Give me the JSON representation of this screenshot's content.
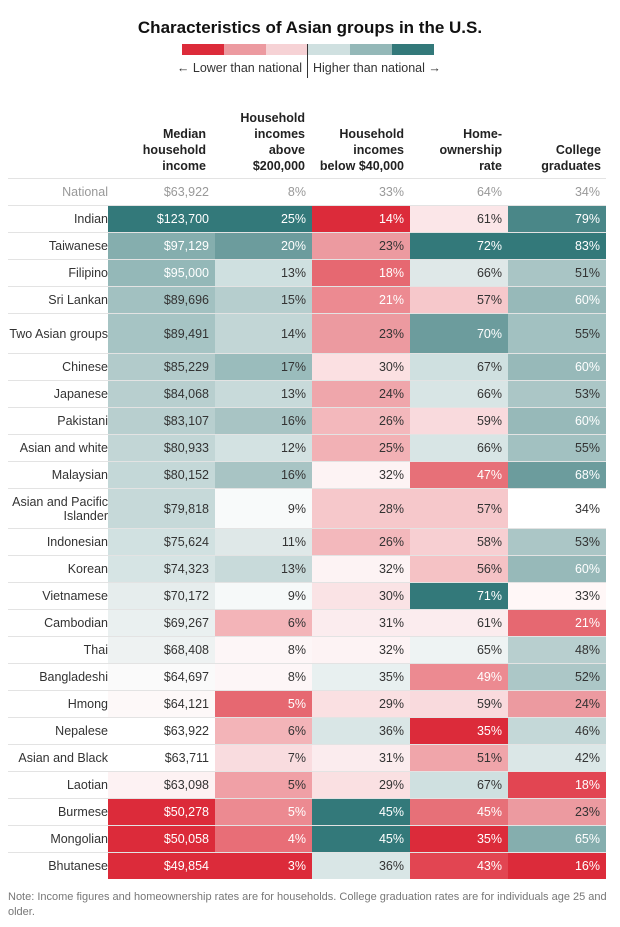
{
  "title": "Characteristics of Asian groups in the U.S.",
  "legend": {
    "lower_label": "← Lower than national",
    "higher_label": "Higher than national →",
    "colors": [
      "#dc2b3a",
      "#ec9aa0",
      "#f6d2d5",
      "#cfe0e0",
      "#94b8b8",
      "#33797a"
    ]
  },
  "columns": [
    {
      "label": "Median household income"
    },
    {
      "label": "Household incomes above $200,000"
    },
    {
      "label": "Household incomes below $40,000"
    },
    {
      "label": "Home-ownership rate"
    },
    {
      "label": "College graduates"
    }
  ],
  "note": "Note: Income figures and homeownership rates are for households. College graduation rates are for individuals age 25 and older.",
  "chart_data": {
    "type": "table",
    "title": "Characteristics of Asian groups in the U.S.",
    "columns": [
      "Median household income",
      "Household incomes above $200,000",
      "Household incomes below $40,000",
      "Home-ownership rate",
      "College graduates"
    ],
    "rows": [
      {
        "group": "National",
        "values": [
          "$63,922",
          "8%",
          "33%",
          "64%",
          "34%"
        ],
        "colors": [
          "#ffffff",
          "#ffffff",
          "#ffffff",
          "#ffffff",
          "#ffffff"
        ]
      },
      {
        "group": "Indian",
        "values": [
          "$123,700",
          "25%",
          "14%",
          "61%",
          "79%"
        ],
        "colors": [
          "#33797a",
          "#33797a",
          "#dc2b3a",
          "#fbe6e8",
          "#4a8788"
        ]
      },
      {
        "group": "Taiwanese",
        "values": [
          "$97,129",
          "20%",
          "23%",
          "72%",
          "83%"
        ],
        "colors": [
          "#85aeae",
          "#6c9c9d",
          "#ec9aa0",
          "#33797a",
          "#33797a"
        ]
      },
      {
        "group": "Filipino",
        "values": [
          "$95,000",
          "13%",
          "18%",
          "66%",
          "51%"
        ],
        "colors": [
          "#94b8b8",
          "#cfe0e0",
          "#e66871",
          "#dfe8e8",
          "#a9c5c5"
        ]
      },
      {
        "group": "Sri Lankan",
        "values": [
          "$89,696",
          "15%",
          "21%",
          "57%",
          "60%"
        ],
        "colors": [
          "#a2c1c1",
          "#b6cece",
          "#ec8a91",
          "#f6c8cb",
          "#97b9b9"
        ]
      },
      {
        "group": "Two Asian groups",
        "values": [
          "$89,491",
          "14%",
          "23%",
          "70%",
          "55%"
        ],
        "colors": [
          "#a6c4c4",
          "#c2d6d6",
          "#ec9aa0",
          "#6c9c9d",
          "#a2c1c1"
        ]
      },
      {
        "group": "Chinese",
        "values": [
          "$85,229",
          "17%",
          "30%",
          "67%",
          "60%"
        ],
        "colors": [
          "#b2cbcb",
          "#9abcbc",
          "#fbe0e2",
          "#cfe0e0",
          "#97b9b9"
        ]
      },
      {
        "group": "Japanese",
        "values": [
          "$84,068",
          "13%",
          "24%",
          "66%",
          "53%"
        ],
        "colors": [
          "#b8cfcf",
          "#c8dada",
          "#efa6ab",
          "#d8e5e5",
          "#abc6c6"
        ]
      },
      {
        "group": "Pakistani",
        "values": [
          "$83,107",
          "16%",
          "26%",
          "59%",
          "60%"
        ],
        "colors": [
          "#b8cfcf",
          "#a8c4c4",
          "#f3b8bc",
          "#f9dadd",
          "#97b9b9"
        ]
      },
      {
        "group": "Asian and white",
        "values": [
          "$80,933",
          "12%",
          "25%",
          "66%",
          "55%"
        ],
        "colors": [
          "#c2d6d6",
          "#d3e2e2",
          "#f2b1b5",
          "#d8e5e5",
          "#a2c1c1"
        ]
      },
      {
        "group": "Malaysian",
        "values": [
          "$80,152",
          "16%",
          "32%",
          "47%",
          "68%"
        ],
        "colors": [
          "#c4d8d8",
          "#a8c4c4",
          "#fdf3f4",
          "#e77078",
          "#6c9c9d"
        ]
      },
      {
        "group": "Asian and Pacific Islander",
        "values": [
          "$79,818",
          "9%",
          "28%",
          "57%",
          "34%"
        ],
        "colors": [
          "#c6d9d9",
          "#f8fafa",
          "#f6c8cb",
          "#f6c8cb",
          "#ffffff"
        ]
      },
      {
        "group": "Indonesian",
        "values": [
          "$75,624",
          "11%",
          "26%",
          "58%",
          "53%"
        ],
        "colors": [
          "#d1e1e1",
          "#dfe8e8",
          "#f3b8bc",
          "#f7cfd2",
          "#abc6c6"
        ]
      },
      {
        "group": "Korean",
        "values": [
          "$74,323",
          "13%",
          "32%",
          "56%",
          "60%"
        ],
        "colors": [
          "#d6e4e4",
          "#c8dada",
          "#fdf3f4",
          "#f5c2c5",
          "#97b9b9"
        ]
      },
      {
        "group": "Vietnamese",
        "values": [
          "$70,172",
          "9%",
          "30%",
          "71%",
          "33%"
        ],
        "colors": [
          "#e6eded",
          "#f6f9f9",
          "#fae3e5",
          "#33797a",
          "#fff7f7"
        ]
      },
      {
        "group": "Cambodian",
        "values": [
          "$69,267",
          "6%",
          "31%",
          "61%",
          "21%"
        ],
        "colors": [
          "#eaf0f0",
          "#f3b4b8",
          "#fbecee",
          "#fbecee",
          "#e66871"
        ]
      },
      {
        "group": "Thai",
        "values": [
          "$68,408",
          "8%",
          "32%",
          "65%",
          "48%"
        ],
        "colors": [
          "#eef2f2",
          "#fdf6f7",
          "#fdf3f4",
          "#eef3f3",
          "#b8cfcf"
        ]
      },
      {
        "group": "Bangladeshi",
        "values": [
          "$64,697",
          "8%",
          "35%",
          "49%",
          "52%"
        ],
        "colors": [
          "#fafafa",
          "#fdf6f7",
          "#e8f0f0",
          "#ec8a91",
          "#acc7c7"
        ]
      },
      {
        "group": "Hmong",
        "values": [
          "$64,121",
          "5%",
          "29%",
          "59%",
          "24%"
        ],
        "colors": [
          "#fdf8f8",
          "#e66871",
          "#fae0e2",
          "#f9dadd",
          "#ec9aa0"
        ]
      },
      {
        "group": "Nepalese",
        "values": [
          "$63,922",
          "6%",
          "36%",
          "35%",
          "46%"
        ],
        "colors": [
          "#ffffff",
          "#f3b4b8",
          "#d9e6e6",
          "#dc2b3a",
          "#c4d8d8"
        ]
      },
      {
        "group": "Asian and Black",
        "values": [
          "$63,711",
          "7%",
          "31%",
          "51%",
          "42%"
        ],
        "colors": [
          "#ffffff",
          "#f9dcdf",
          "#fbecee",
          "#f0a5aa",
          "#dbe7e7"
        ]
      },
      {
        "group": "Laotian",
        "values": [
          "$63,098",
          "5%",
          "29%",
          "67%",
          "18%"
        ],
        "colors": [
          "#fdf2f3",
          "#f0a0a6",
          "#fae0e2",
          "#cfe0e0",
          "#e24552"
        ]
      },
      {
        "group": "Burmese",
        "values": [
          "$50,278",
          "5%",
          "45%",
          "45%",
          "23%"
        ],
        "colors": [
          "#dc2b3a",
          "#ec8a91",
          "#33797a",
          "#e77078",
          "#ec9aa0"
        ]
      },
      {
        "group": "Mongolian",
        "values": [
          "$50,058",
          "4%",
          "45%",
          "35%",
          "65%"
        ],
        "colors": [
          "#dc2b3a",
          "#e86e77",
          "#33797a",
          "#dc2b3a",
          "#85aeae"
        ]
      },
      {
        "group": "Bhutanese",
        "values": [
          "$49,854",
          "3%",
          "36%",
          "43%",
          "16%"
        ],
        "colors": [
          "#dc2b3a",
          "#dc2b3a",
          "#d9e6e6",
          "#e24552",
          "#dc2b3a"
        ]
      }
    ]
  }
}
